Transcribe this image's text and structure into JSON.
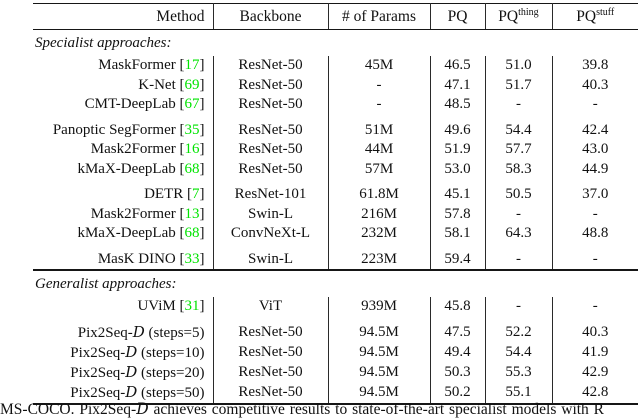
{
  "colors": {
    "citation_green": "#00e400",
    "rule_black": "#161616"
  },
  "table": {
    "columns": [
      {
        "label": "Method",
        "sup": ""
      },
      {
        "label": "Backbone",
        "sup": ""
      },
      {
        "label": "# of Params",
        "sup": ""
      },
      {
        "label": "PQ",
        "sup": ""
      },
      {
        "label": "PQ",
        "sup": "thing"
      },
      {
        "label": "PQ",
        "sup": "stuff"
      }
    ],
    "sections": [
      {
        "label": "Specialist approaches:",
        "rows": [
          {
            "method": "MaskFormer",
            "cite": "17",
            "backbone": "ResNet-50",
            "params": "45M",
            "pq": "46.5",
            "pq_thing": "51.0",
            "pq_stuff": "39.8"
          },
          {
            "method": "K-Net",
            "cite": "69",
            "backbone": "ResNet-50",
            "params": "-",
            "pq": "47.1",
            "pq_thing": "51.7",
            "pq_stuff": "40.3"
          },
          {
            "method": "CMT-DeepLab",
            "cite": "67",
            "backbone": "ResNet-50",
            "params": "-",
            "pq": "48.5",
            "pq_thing": "-",
            "pq_stuff": "-"
          },
          {
            "method": "Panoptic SegFormer",
            "cite": "35",
            "backbone": "ResNet-50",
            "params": "51M",
            "pq": "49.6",
            "pq_thing": "54.4",
            "pq_stuff": "42.4",
            "gap": true
          },
          {
            "method": "Mask2Former",
            "cite": "16",
            "backbone": "ResNet-50",
            "params": "44M",
            "pq": "51.9",
            "pq_thing": "57.7",
            "pq_stuff": "43.0"
          },
          {
            "method": "kMaX-DeepLab",
            "cite": "68",
            "backbone": "ResNet-50",
            "params": "57M",
            "pq": "53.0",
            "pq_thing": "58.3",
            "pq_stuff": "44.9"
          },
          {
            "method": "DETR",
            "cite": "7",
            "backbone": "ResNet-101",
            "params": "61.8M",
            "pq": "45.1",
            "pq_thing": "50.5",
            "pq_stuff": "37.0",
            "gap": true
          },
          {
            "method": "Mask2Former",
            "cite": "13",
            "backbone": "Swin-L",
            "params": "216M",
            "pq": "57.8",
            "pq_thing": "-",
            "pq_stuff": "-"
          },
          {
            "method": "kMaX-DeepLab",
            "cite": "68",
            "backbone": "ConvNeXt-L",
            "params": "232M",
            "pq": "58.1",
            "pq_thing": "64.3",
            "pq_stuff": "48.8"
          },
          {
            "method": "MasK DINO",
            "cite": "33",
            "backbone": "Swin-L",
            "params": "223M",
            "pq": "59.4",
            "pq_thing": "-",
            "pq_stuff": "-",
            "gap": true
          }
        ]
      },
      {
        "label": "Generalist approaches:",
        "rows": [
          {
            "method": "UViM",
            "cite": "31",
            "backbone": "ViT",
            "params": "939M",
            "pq": "45.8",
            "pq_thing": "-",
            "pq_stuff": "-"
          },
          {
            "method_pre": "Pix2Seq-",
            "method_cal": "D",
            "method_post": " (steps=5)",
            "backbone": "ResNet-50",
            "params": "94.5M",
            "pq": "47.5",
            "pq_thing": "52.2",
            "pq_stuff": "40.3",
            "gap": true
          },
          {
            "method_pre": "Pix2Seq-",
            "method_cal": "D",
            "method_post": " (steps=10)",
            "backbone": "ResNet-50",
            "params": "94.5M",
            "pq": "49.4",
            "pq_thing": "54.4",
            "pq_stuff": "41.9"
          },
          {
            "method_pre": "Pix2Seq-",
            "method_cal": "D",
            "method_post": " (steps=20)",
            "backbone": "ResNet-50",
            "params": "94.5M",
            "pq": "50.3",
            "pq_thing": "55.3",
            "pq_stuff": "42.9"
          },
          {
            "method_pre": "Pix2Seq-",
            "method_cal": "D",
            "method_post": " (steps=50)",
            "backbone": "ResNet-50",
            "params": "94.5M",
            "pq": "50.2",
            "pq_thing": "55.1",
            "pq_stuff": "42.8"
          }
        ]
      }
    ]
  },
  "caption": {
    "text_before": "MS-COCO. Pix2Seq-",
    "cal": "D",
    "text_after": " achieves competitive results to state-of-the-art specialist models with R"
  }
}
